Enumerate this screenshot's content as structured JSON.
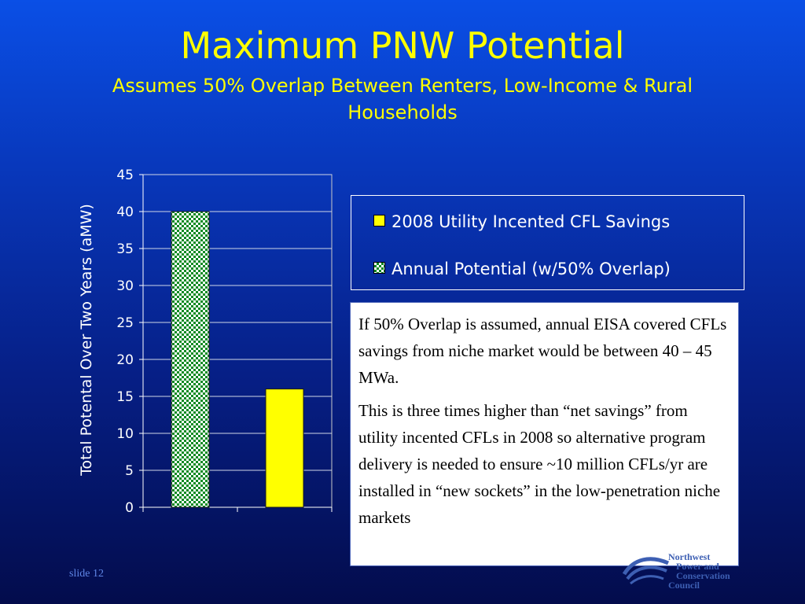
{
  "slide": {
    "title": "Maximum PNW Potential",
    "subtitle": "Assumes 50% Overlap Between Renters, Low-Income & Rural Households",
    "slide_number": "slide 12"
  },
  "note": {
    "paragraphs": [
      "If 50% Overlap is assumed, annual EISA covered CFLs savings from niche market would be between 40 – 45 MWa.",
      "This is three times higher than “net savings” from utility incented CFLs in 2008 so alternative program delivery is needed to ensure ~10 million CFLs/yr are installed in “new sockets” in the low-penetration niche markets"
    ]
  },
  "logo": {
    "lines": [
      "Northwest",
      "Power and",
      "Conservation",
      "Council"
    ]
  },
  "chart_data": {
    "type": "bar",
    "ylabel": "Total Potental Over Two Years (aMW)",
    "xlabel": "",
    "ylim": [
      0,
      45
    ],
    "yticks": [
      0,
      5,
      10,
      15,
      20,
      25,
      30,
      35,
      40,
      45
    ],
    "grid": true,
    "legend_position": "right",
    "bars": [
      {
        "series": "Annual Potential (w/50% Overlap)",
        "value": 40
      },
      {
        "series": "2008 Utility Incented CFL Savings",
        "value": 16
      }
    ],
    "series": [
      {
        "name": "2008 Utility Incented CFL Savings",
        "color": "#ffff00",
        "pattern": "solid"
      },
      {
        "name": "Annual Potential (w/50% Overlap)",
        "color": "#0f8a23",
        "pattern": "checkerboard"
      }
    ]
  }
}
